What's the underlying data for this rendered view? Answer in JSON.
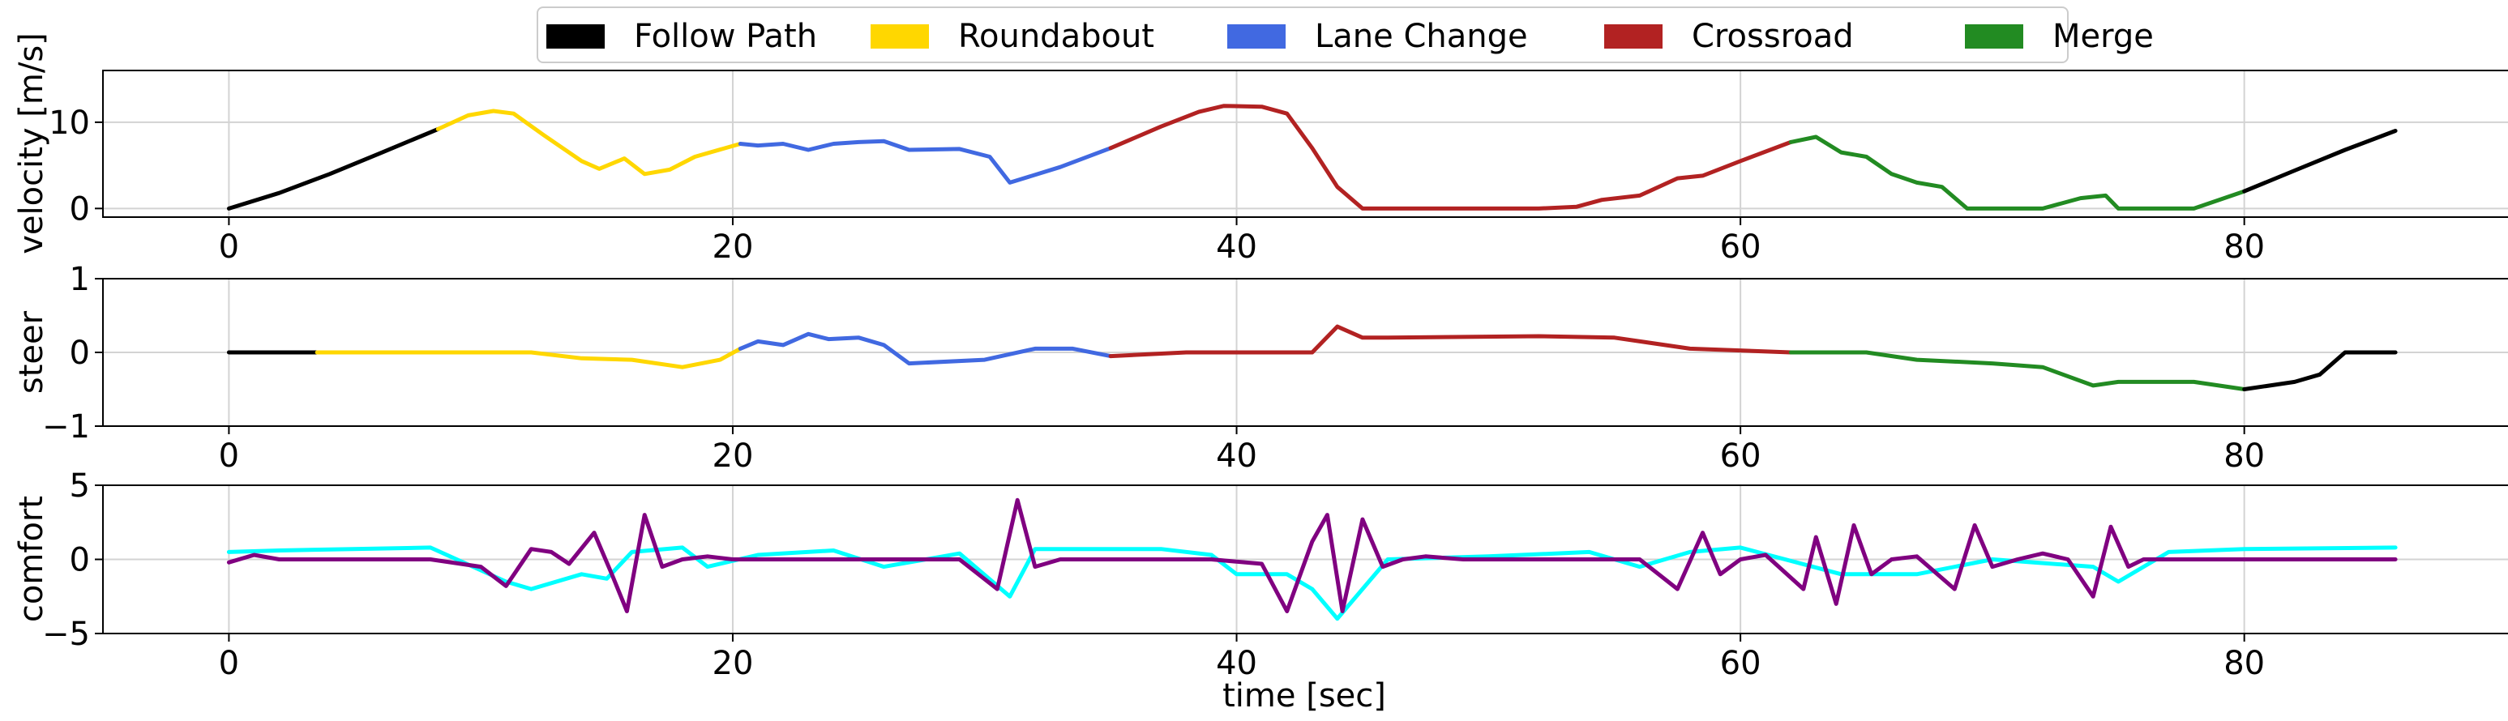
{
  "legend": [
    {
      "label": "Follow Path",
      "color": "#000000"
    },
    {
      "label": "Roundabout",
      "color": "#FFD700"
    },
    {
      "label": "Lane Change",
      "color": "#4169E1"
    },
    {
      "label": "Crossroad",
      "color": "#B22222"
    },
    {
      "label": "Merge",
      "color": "#228B22"
    }
  ],
  "chart_data": [
    {
      "type": "line",
      "ylabel": "velocity [m/s]",
      "xlim": [
        -5,
        90.5
      ],
      "ylim": [
        -1,
        16
      ],
      "xticks": [
        0,
        20,
        40,
        60,
        80
      ],
      "yticks": [
        0,
        10
      ],
      "grid": true,
      "segments": [
        {
          "maneuver": "Follow Path",
          "color": "#000000",
          "x": [
            0,
            2,
            4,
            6,
            8.3
          ],
          "y": [
            0,
            1.8,
            4,
            6.4,
            9.2
          ]
        },
        {
          "maneuver": "Roundabout",
          "color": "#FFD700",
          "x": [
            8.3,
            9.5,
            10.5,
            11.3,
            12.5,
            14,
            14.7,
            15.7,
            16.5,
            17.5,
            18.5,
            20.3
          ],
          "y": [
            9.2,
            10.8,
            11.3,
            11,
            8.5,
            5.5,
            4.6,
            5.8,
            4,
            4.5,
            6,
            7.5
          ]
        },
        {
          "maneuver": "Lane Change",
          "color": "#4169E1",
          "x": [
            20.3,
            21,
            22,
            23,
            24,
            25,
            26,
            27,
            29,
            30.2,
            31,
            33,
            35
          ],
          "y": [
            7.5,
            7.3,
            7.5,
            6.8,
            7.5,
            7.7,
            7.8,
            6.8,
            6.9,
            6,
            3,
            4.8,
            7
          ]
        },
        {
          "maneuver": "Crossroad",
          "color": "#B22222",
          "x": [
            35,
            37,
            38.5,
            39.5,
            41,
            42,
            43,
            44,
            45,
            46,
            48,
            50,
            52,
            53.5,
            54.5,
            56,
            57.5,
            58.5,
            60,
            62
          ],
          "y": [
            7,
            9.5,
            11.2,
            11.9,
            11.8,
            11,
            7,
            2.5,
            0,
            0,
            0,
            0,
            0,
            0.2,
            1,
            1.5,
            3.5,
            3.8,
            5.5,
            7.7
          ]
        },
        {
          "maneuver": "Merge",
          "color": "#228B22",
          "x": [
            62,
            63,
            64,
            65,
            66,
            67,
            68,
            69,
            70,
            72,
            73.5,
            74.5,
            75,
            76,
            78,
            80
          ],
          "y": [
            7.7,
            8.3,
            6.5,
            6,
            4,
            3,
            2.5,
            0,
            0,
            0,
            1.2,
            1.5,
            0,
            0,
            0,
            2
          ]
        },
        {
          "maneuver": "Follow Path",
          "color": "#000000",
          "x": [
            80,
            82,
            84,
            86
          ],
          "y": [
            2,
            4.4,
            6.8,
            9
          ]
        }
      ]
    },
    {
      "type": "line",
      "ylabel": "steer",
      "xlim": [
        -5,
        90.5
      ],
      "ylim": [
        -1,
        1
      ],
      "xticks": [
        0,
        20,
        40,
        60,
        80
      ],
      "yticks": [
        -1,
        0,
        1
      ],
      "grid": true,
      "segments": [
        {
          "maneuver": "Follow Path",
          "color": "#000000",
          "x": [
            0,
            3.5
          ],
          "y": [
            0,
            0
          ]
        },
        {
          "maneuver": "Roundabout",
          "color": "#FFD700",
          "x": [
            3.5,
            12,
            14,
            16,
            18,
            19.5,
            20.3
          ],
          "y": [
            0,
            0,
            -0.08,
            -0.1,
            -0.2,
            -0.1,
            0.05
          ]
        },
        {
          "maneuver": "Lane Change",
          "color": "#4169E1",
          "x": [
            20.3,
            21,
            22,
            23,
            23.8,
            25,
            26,
            27,
            30,
            32,
            33.5,
            35
          ],
          "y": [
            0.05,
            0.15,
            0.1,
            0.25,
            0.18,
            0.2,
            0.1,
            -0.15,
            -0.1,
            0.05,
            0.05,
            -0.05
          ]
        },
        {
          "maneuver": "Crossroad",
          "color": "#B22222",
          "x": [
            35,
            38,
            43,
            44,
            45,
            46,
            52,
            55,
            58,
            62
          ],
          "y": [
            -0.05,
            0,
            0,
            0.35,
            0.2,
            0.2,
            0.22,
            0.2,
            0.05,
            0
          ]
        },
        {
          "maneuver": "Merge",
          "color": "#228B22",
          "x": [
            62,
            65,
            67,
            70,
            72,
            74,
            75,
            78,
            80
          ],
          "y": [
            0,
            0,
            -0.1,
            -0.15,
            -0.2,
            -0.45,
            -0.4,
            -0.4,
            -0.5
          ]
        },
        {
          "maneuver": "Follow Path",
          "color": "#000000",
          "x": [
            80,
            82,
            83,
            84,
            86
          ],
          "y": [
            -0.5,
            -0.4,
            -0.3,
            0,
            0
          ]
        }
      ]
    },
    {
      "type": "line",
      "xlabel": "time [sec]",
      "ylabel": "comfort",
      "xlim": [
        -5,
        90.5
      ],
      "ylim": [
        -5,
        5
      ],
      "xticks": [
        0,
        20,
        40,
        60,
        80
      ],
      "yticks": [
        -5,
        0,
        5
      ],
      "grid": true,
      "series": [
        {
          "color": "#00FFFF",
          "x": [
            0,
            2,
            8,
            11,
            12,
            14,
            15,
            16,
            18,
            19,
            21,
            24,
            26,
            29,
            31,
            32,
            34,
            37,
            39,
            40,
            42,
            43,
            44,
            46,
            50,
            54,
            56,
            58,
            60,
            64,
            67,
            70,
            74,
            75,
            77,
            80,
            86
          ],
          "y": [
            0.5,
            0.6,
            0.8,
            -1.5,
            -2,
            -1,
            -1.3,
            0.5,
            0.8,
            -0.5,
            0.3,
            0.6,
            -0.5,
            0.4,
            -2.5,
            0.7,
            0.7,
            0.7,
            0.3,
            -1,
            -1,
            -2,
            -4,
            0,
            0.2,
            0.5,
            -0.5,
            0.5,
            0.8,
            -1,
            -1,
            0,
            -0.5,
            -1.5,
            0.5,
            0.7,
            0.8
          ]
        },
        {
          "color": "#800080",
          "x": [
            0,
            1,
            2,
            4,
            8,
            10,
            11,
            12,
            12.8,
            13.5,
            14.5,
            15.2,
            15.8,
            16.5,
            17.2,
            18,
            19,
            20,
            26,
            29,
            30.5,
            31.3,
            32,
            33,
            39,
            41,
            42,
            43,
            43.6,
            44.2,
            45,
            45.8,
            46.6,
            47.5,
            49,
            56,
            57.5,
            58.5,
            59.2,
            60,
            61,
            62.5,
            63,
            63.8,
            64.5,
            65.2,
            66,
            67,
            68.5,
            69.3,
            70,
            71,
            72,
            73,
            74,
            74.7,
            75.4,
            76,
            77,
            86
          ],
          "y": [
            -0.2,
            0.3,
            0,
            0,
            0,
            -0.5,
            -1.8,
            0.7,
            0.5,
            -0.3,
            1.8,
            -1,
            -3.5,
            3,
            -0.5,
            0,
            0.2,
            0,
            0,
            0,
            -2,
            4,
            -0.5,
            0,
            0,
            -0.3,
            -3.5,
            1.2,
            3,
            -3.5,
            2.7,
            -0.5,
            0,
            0.2,
            0,
            0,
            -2,
            1.8,
            -1,
            0,
            0.3,
            -2,
            1.5,
            -3,
            2.3,
            -1,
            0,
            0.2,
            -2,
            2.3,
            -0.5,
            0,
            0.4,
            0,
            -2.5,
            2.2,
            -0.5,
            0,
            0,
            0
          ]
        }
      ]
    }
  ]
}
